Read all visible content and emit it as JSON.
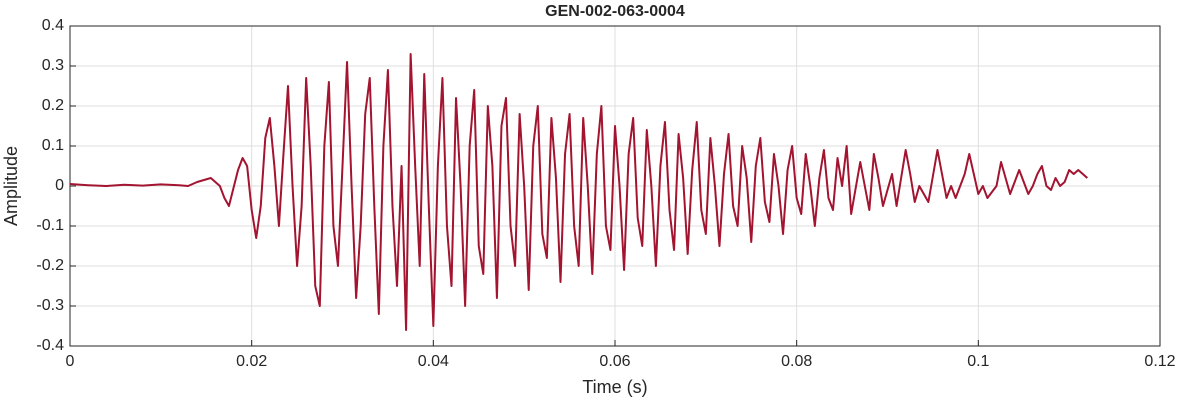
{
  "chart_data": {
    "type": "line",
    "title": "GEN-002-063-0004",
    "xlabel": "Time (s)",
    "ylabel": "Amplitude",
    "color": "#a2142f",
    "grid": true,
    "xlim": [
      0,
      0.12
    ],
    "xticks": [
      0,
      0.02,
      0.04,
      0.06,
      0.08,
      0.1,
      0.12
    ],
    "ylim": [
      -0.4,
      0.4
    ],
    "yticks": [
      -0.4,
      -0.3,
      -0.2,
      -0.1,
      0,
      0.1,
      0.2,
      0.3,
      0.4
    ],
    "x": [
      0,
      0.002,
      0.004,
      0.006,
      0.008,
      0.01,
      0.012,
      0.013,
      0.014,
      0.0155,
      0.0165,
      0.017,
      0.0175,
      0.0185,
      0.019,
      0.0195,
      0.02,
      0.0205,
      0.021,
      0.0215,
      0.022,
      0.0225,
      0.023,
      0.0235,
      0.024,
      0.0245,
      0.025,
      0.0255,
      0.026,
      0.0265,
      0.027,
      0.0275,
      0.028,
      0.0285,
      0.029,
      0.0295,
      0.03,
      0.0305,
      0.031,
      0.0315,
      0.032,
      0.0325,
      0.033,
      0.0335,
      0.034,
      0.0345,
      0.035,
      0.0355,
      0.036,
      0.0365,
      0.037,
      0.0375,
      0.038,
      0.0385,
      0.039,
      0.0395,
      0.04,
      0.0405,
      0.041,
      0.0415,
      0.042,
      0.0425,
      0.043,
      0.0435,
      0.044,
      0.0445,
      0.045,
      0.0455,
      0.046,
      0.0465,
      0.047,
      0.0475,
      0.048,
      0.0485,
      0.049,
      0.0495,
      0.05,
      0.0505,
      0.051,
      0.0515,
      0.052,
      0.0525,
      0.053,
      0.0535,
      0.054,
      0.0545,
      0.055,
      0.0555,
      0.056,
      0.0565,
      0.057,
      0.0575,
      0.058,
      0.0585,
      0.059,
      0.0595,
      0.06,
      0.0605,
      0.061,
      0.0615,
      0.062,
      0.0625,
      0.063,
      0.0635,
      0.064,
      0.0645,
      0.065,
      0.0655,
      0.066,
      0.0665,
      0.067,
      0.0675,
      0.068,
      0.0685,
      0.069,
      0.0695,
      0.07,
      0.0705,
      0.071,
      0.0715,
      0.072,
      0.0725,
      0.073,
      0.0735,
      0.074,
      0.0745,
      0.075,
      0.0755,
      0.076,
      0.0765,
      0.077,
      0.0775,
      0.078,
      0.0785,
      0.079,
      0.0795,
      0.08,
      0.0805,
      0.081,
      0.0815,
      0.082,
      0.0825,
      0.083,
      0.0835,
      0.084,
      0.0845,
      0.085,
      0.0855,
      0.086,
      0.087,
      0.0875,
      0.088,
      0.0885,
      0.089,
      0.0895,
      0.09,
      0.0905,
      0.091,
      0.092,
      0.0925,
      0.093,
      0.0935,
      0.094,
      0.0945,
      0.0955,
      0.096,
      0.0965,
      0.097,
      0.0975,
      0.0985,
      0.099,
      0.0995,
      0.1,
      0.1005,
      0.101,
      0.102,
      0.1025,
      0.103,
      0.1035,
      0.104,
      0.1045,
      0.105,
      0.1055,
      0.106,
      0.1065,
      0.107,
      0.1075,
      0.108,
      0.1085,
      0.109,
      0.1095,
      0.11,
      0.1105,
      0.111,
      0.1115,
      0.112
    ],
    "values": [
      0.005,
      0.002,
      0,
      0.003,
      0.001,
      0.004,
      0.002,
      0,
      0.01,
      0.02,
      0,
      -0.03,
      -0.05,
      0.04,
      0.07,
      0.05,
      -0.06,
      -0.13,
      -0.05,
      0.12,
      0.17,
      0.05,
      -0.1,
      0.08,
      0.25,
      0,
      -0.2,
      -0.05,
      0.27,
      0.05,
      -0.25,
      -0.3,
      0.1,
      0.26,
      -0.1,
      -0.2,
      0.05,
      0.31,
      0,
      -0.28,
      -0.1,
      0.18,
      0.27,
      -0.05,
      -0.32,
      0.1,
      0.29,
      -0.05,
      -0.25,
      0.05,
      -0.36,
      0.33,
      0.05,
      -0.2,
      0.28,
      -0.05,
      -0.35,
      0.05,
      0.27,
      -0.1,
      -0.25,
      0.22,
      0,
      -0.3,
      0.1,
      0.24,
      -0.15,
      -0.22,
      0.2,
      0.05,
      -0.28,
      0.15,
      0.22,
      -0.1,
      -0.2,
      0.18,
      0,
      -0.26,
      0.1,
      0.2,
      -0.12,
      -0.18,
      0.17,
      0.02,
      -0.24,
      0.08,
      0.18,
      -0.1,
      -0.2,
      0.17,
      0,
      -0.22,
      0.08,
      0.2,
      -0.1,
      -0.16,
      0.15,
      0,
      -0.21,
      0.08,
      0.17,
      -0.08,
      -0.15,
      0.14,
      0,
      -0.2,
      0.05,
      0.16,
      -0.06,
      -0.16,
      0.13,
      0.02,
      -0.17,
      0.04,
      0.16,
      -0.06,
      -0.12,
      0.12,
      0,
      -0.15,
      0.03,
      0.13,
      -0.05,
      -0.1,
      0.1,
      0.02,
      -0.14,
      0.05,
      0.12,
      -0.04,
      -0.09,
      0.08,
      0,
      -0.12,
      0.04,
      0.1,
      -0.03,
      -0.07,
      0.08,
      0,
      -0.1,
      0.02,
      0.09,
      -0.03,
      -0.06,
      0.07,
      0,
      0.1,
      -0.07,
      0.06,
      0,
      -0.06,
      0.08,
      0.02,
      -0.05,
      -0.01,
      0.03,
      -0.05,
      0.09,
      0.03,
      -0.04,
      0,
      -0.02,
      -0.04,
      0.09,
      0.03,
      -0.03,
      0,
      -0.03,
      0.03,
      0.08,
      0.03,
      -0.02,
      0,
      -0.03,
      0,
      0.06,
      0.02,
      -0.02,
      0.01,
      0.04,
      0.01,
      -0.02,
      0,
      0.03,
      0.05,
      0,
      -0.01,
      0.02,
      0,
      0.01,
      0.04,
      0.03,
      0.04,
      0.03,
      0.02
    ]
  }
}
